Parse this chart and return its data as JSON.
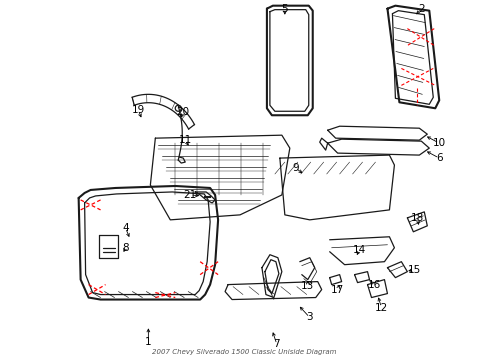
{
  "title": "2007 Chevy Silverado 1500 Classic Uniside Diagram",
  "bg_color": "#ffffff",
  "line_color": "#1a1a1a",
  "red_dashed_color": "#ff0000",
  "gray_line_color": "#555555",
  "label_font": 7.5,
  "lw": 0.9,
  "lw2": 1.5
}
